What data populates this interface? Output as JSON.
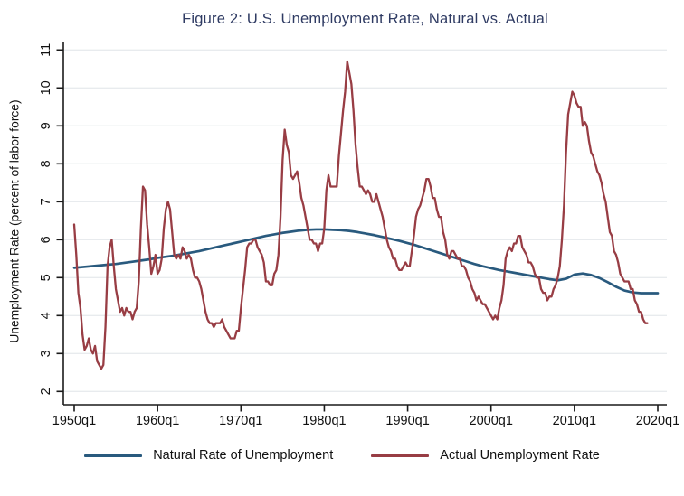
{
  "chart_data": {
    "type": "line",
    "title": "Figure 2: U.S. Unemployment Rate, Natural vs. Actual",
    "xlabel": "",
    "ylabel": "Unemployment Rate (percent of labor force)",
    "xlim": [
      1950,
      2020
    ],
    "ylim": [
      2,
      11
    ],
    "y_ticks": [
      2,
      3,
      4,
      5,
      6,
      7,
      8,
      9,
      10,
      11
    ],
    "x_tick_values": [
      1950,
      1960,
      1970,
      1980,
      1990,
      2000,
      2010,
      2020
    ],
    "x_tick_labels": [
      "1950q1",
      "1960q1",
      "1970q1",
      "1980q1",
      "1990q1",
      "2000q1",
      "2010q1",
      "2020q1"
    ],
    "grid": "horizontal",
    "legend_position": "bottom-center",
    "colors": {
      "title": "#2f3b63",
      "axis": "#1a1a1a",
      "gridline": "#e8ebee",
      "natural_line": "#295a7e",
      "actual_line": "#983d44"
    },
    "series": [
      {
        "name": "Natural Rate of Unemployment",
        "key": "natural-rate",
        "color": "#295a7e",
        "line_width": 2.7,
        "x_start": 1950,
        "x_step": 1,
        "values": [
          5.26,
          5.28,
          5.3,
          5.32,
          5.34,
          5.36,
          5.39,
          5.42,
          5.45,
          5.48,
          5.52,
          5.55,
          5.58,
          5.62,
          5.66,
          5.7,
          5.75,
          5.8,
          5.85,
          5.9,
          5.95,
          6.0,
          6.05,
          6.1,
          6.14,
          6.18,
          6.21,
          6.24,
          6.26,
          6.27,
          6.27,
          6.26,
          6.25,
          6.23,
          6.2,
          6.16,
          6.12,
          6.07,
          6.02,
          5.97,
          5.91,
          5.85,
          5.78,
          5.71,
          5.64,
          5.57,
          5.5,
          5.43,
          5.36,
          5.3,
          5.25,
          5.2,
          5.16,
          5.12,
          5.08,
          5.04,
          5.0,
          4.96,
          4.93,
          4.97,
          5.08,
          5.11,
          5.07,
          4.99,
          4.88,
          4.76,
          4.66,
          4.61,
          4.59,
          4.59,
          4.59
        ]
      },
      {
        "name": "Actual Unemployment Rate",
        "key": "actual-rate",
        "color": "#983d44",
        "line_width": 2.3,
        "x_start": 1950,
        "x_step": 0.25,
        "values": [
          6.4,
          5.6,
          4.6,
          4.2,
          3.5,
          3.1,
          3.2,
          3.4,
          3.1,
          3.0,
          3.2,
          2.8,
          2.7,
          2.6,
          2.7,
          3.7,
          5.3,
          5.8,
          6.0,
          5.3,
          4.7,
          4.4,
          4.1,
          4.2,
          4.0,
          4.2,
          4.1,
          4.1,
          3.9,
          4.1,
          4.2,
          4.9,
          6.3,
          7.4,
          7.3,
          6.4,
          5.8,
          5.1,
          5.3,
          5.6,
          5.1,
          5.2,
          5.5,
          6.3,
          6.8,
          7.0,
          6.8,
          6.2,
          5.6,
          5.5,
          5.6,
          5.5,
          5.8,
          5.7,
          5.5,
          5.6,
          5.5,
          5.2,
          5.0,
          5.0,
          4.9,
          4.7,
          4.4,
          4.1,
          3.9,
          3.8,
          3.8,
          3.7,
          3.8,
          3.8,
          3.8,
          3.9,
          3.7,
          3.6,
          3.5,
          3.4,
          3.4,
          3.4,
          3.6,
          3.6,
          4.2,
          4.7,
          5.2,
          5.8,
          5.9,
          5.9,
          6.0,
          6.0,
          5.8,
          5.7,
          5.6,
          5.4,
          4.9,
          4.9,
          4.8,
          4.8,
          5.1,
          5.2,
          5.6,
          6.6,
          8.1,
          8.9,
          8.5,
          8.3,
          7.7,
          7.6,
          7.7,
          7.8,
          7.5,
          7.1,
          6.9,
          6.6,
          6.3,
          6.0,
          6.0,
          5.9,
          5.9,
          5.7,
          5.9,
          5.9,
          6.3,
          7.3,
          7.7,
          7.4,
          7.4,
          7.4,
          7.4,
          8.2,
          8.8,
          9.4,
          9.9,
          10.7,
          10.4,
          10.1,
          9.4,
          8.5,
          7.9,
          7.4,
          7.4,
          7.3,
          7.2,
          7.3,
          7.2,
          7.0,
          7.0,
          7.2,
          7.0,
          6.8,
          6.6,
          6.3,
          6.0,
          5.8,
          5.7,
          5.5,
          5.5,
          5.3,
          5.2,
          5.2,
          5.3,
          5.4,
          5.3,
          5.3,
          5.7,
          6.1,
          6.6,
          6.8,
          6.9,
          7.1,
          7.3,
          7.6,
          7.6,
          7.4,
          7.1,
          7.1,
          6.8,
          6.6,
          6.6,
          6.2,
          6.0,
          5.6,
          5.5,
          5.7,
          5.7,
          5.6,
          5.5,
          5.5,
          5.3,
          5.3,
          5.2,
          5.0,
          4.9,
          4.7,
          4.6,
          4.4,
          4.5,
          4.4,
          4.3,
          4.3,
          4.2,
          4.1,
          4.0,
          3.9,
          4.0,
          3.9,
          4.2,
          4.4,
          4.8,
          5.5,
          5.7,
          5.8,
          5.7,
          5.9,
          5.9,
          6.1,
          6.1,
          5.8,
          5.7,
          5.6,
          5.4,
          5.4,
          5.3,
          5.1,
          5.0,
          5.0,
          4.7,
          4.6,
          4.6,
          4.4,
          4.5,
          4.5,
          4.7,
          4.8,
          5.0,
          5.3,
          6.0,
          6.9,
          8.3,
          9.3,
          9.6,
          9.9,
          9.8,
          9.6,
          9.5,
          9.5,
          9.0,
          9.1,
          9.0,
          8.6,
          8.3,
          8.2,
          8.0,
          7.8,
          7.7,
          7.5,
          7.2,
          7.0,
          6.6,
          6.2,
          6.1,
          5.7,
          5.6,
          5.4,
          5.1,
          5.0,
          4.9,
          4.9,
          4.9,
          4.7,
          4.7,
          4.4,
          4.3,
          4.1,
          4.1,
          3.9,
          3.8,
          3.8
        ]
      }
    ]
  }
}
